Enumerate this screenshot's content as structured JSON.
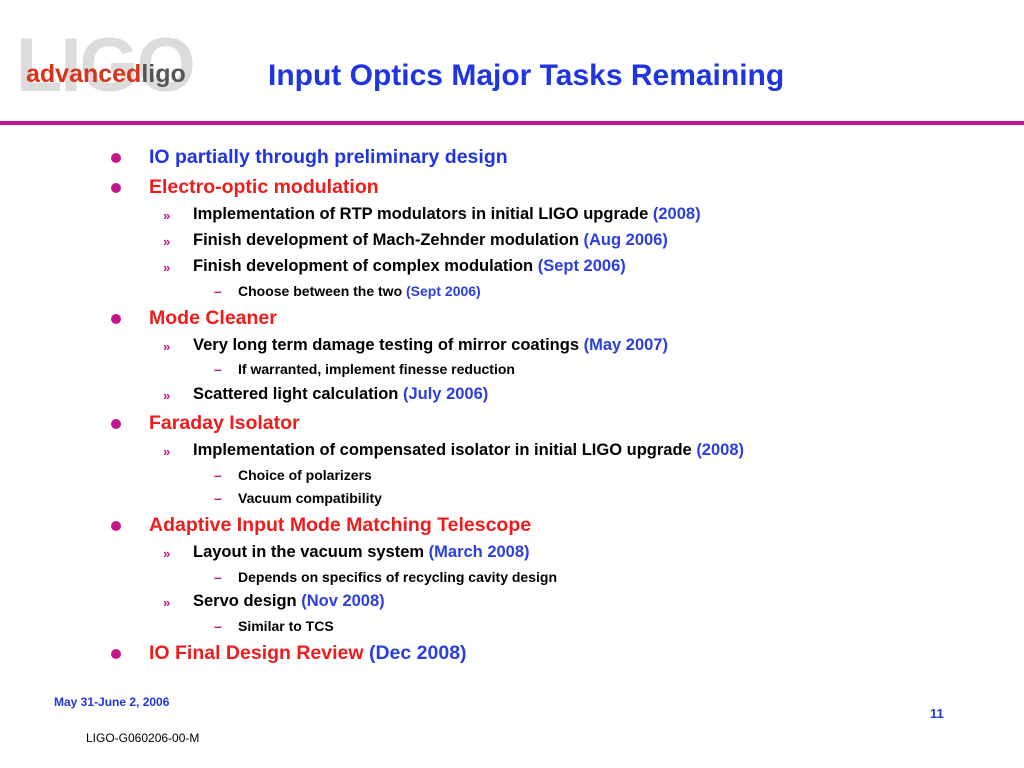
{
  "logo": {
    "background_text": "LIGO",
    "advanced": "advanced",
    "ligo": "ligo"
  },
  "title": "Input Optics Major Tasks Remaining",
  "items": {
    "i1": {
      "text": "IO partially through preliminary design"
    },
    "i2": {
      "text": "Electro-optic modulation"
    },
    "i2a": {
      "text": "Implementation of RTP modulators in initial LIGO upgrade  ",
      "date": "(2008)"
    },
    "i2b": {
      "text": "Finish development of Mach-Zehnder modulation ",
      "date": "(Aug 2006)"
    },
    "i2c": {
      "text": "Finish development of  complex modulation ",
      "date": "(Sept 2006)"
    },
    "i2c1": {
      "text": "Choose between the two ",
      "date": "(Sept 2006)"
    },
    "i3": {
      "text": "Mode Cleaner"
    },
    "i3a": {
      "text": "Very long term damage testing of mirror coatings ",
      "date": "(May 2007)"
    },
    "i3a1": {
      "text": "If warranted, implement finesse reduction"
    },
    "i3b": {
      "text": "Scattered light calculation ",
      "date": "(July 2006)"
    },
    "i4": {
      "text": "Faraday Isolator"
    },
    "i4a": {
      "text": " Implementation of compensated isolator in initial LIGO upgrade ",
      "date": "(2008)"
    },
    "i4a1": {
      "text": "Choice of polarizers"
    },
    "i4a2": {
      "text": "Vacuum compatibility"
    },
    "i5": {
      "text": "Adaptive Input Mode Matching Telescope"
    },
    "i5a": {
      "text": "Layout in the vacuum system ",
      "date": "(March 2008)"
    },
    "i5a1": {
      "text": "Depends on specifics of recycling cavity design"
    },
    "i5b": {
      "text": "Servo design ",
      "date": "(Nov 2008)"
    },
    "i5b1": {
      "text": "Similar to TCS"
    },
    "i6": {
      "text": "IO Final Design Review ",
      "date": "(Dec 2008)"
    }
  },
  "markers": {
    "level2": "»",
    "level3": "–"
  },
  "footer": {
    "date": "May 31-June 2, 2006",
    "page": "11",
    "doc_id": "LIGO-G060206-00-M"
  },
  "colors": {
    "title": "#1f35e0",
    "accent": "#c4168c",
    "heading_red": "#ee1c1c"
  }
}
